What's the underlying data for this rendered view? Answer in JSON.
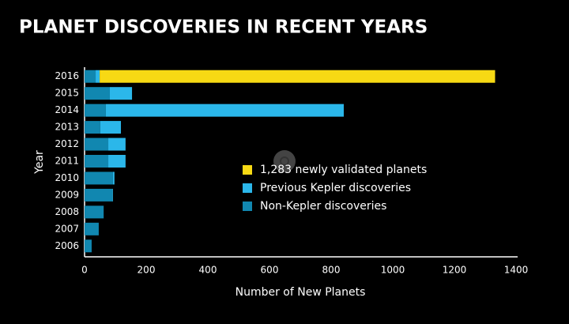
{
  "chart_data": {
    "type": "stacked-barh",
    "title": "PLANET DISCOVERIES IN RECENT YEARS",
    "xlabel": "Number of New Planets",
    "ylabel": "Year",
    "categories": [
      "2016",
      "2015",
      "2014",
      "2013",
      "2012",
      "2011",
      "2010",
      "2009",
      "2008",
      "2007",
      "2006"
    ],
    "series": [
      {
        "name": "Non-Kepler discoveries",
        "color": "#1187b0",
        "values": [
          36,
          82,
          69,
          51,
          77,
          77,
          92,
          90,
          62,
          46,
          23
        ]
      },
      {
        "name": "Previous Kepler discoveries",
        "color": "#2bb7ea",
        "values": [
          13,
          72,
          772,
          67,
          56,
          56,
          5,
          2,
          0,
          0,
          0
        ]
      },
      {
        "name": "1,283 newly validated planets",
        "color": "#f7d914",
        "values": [
          1283,
          0,
          0,
          0,
          0,
          0,
          0,
          0,
          0,
          0,
          0
        ]
      }
    ],
    "xlim": [
      0,
      1400
    ],
    "xticks": [
      0,
      200,
      400,
      600,
      800,
      1000,
      1200,
      1400
    ],
    "legend": "center"
  }
}
